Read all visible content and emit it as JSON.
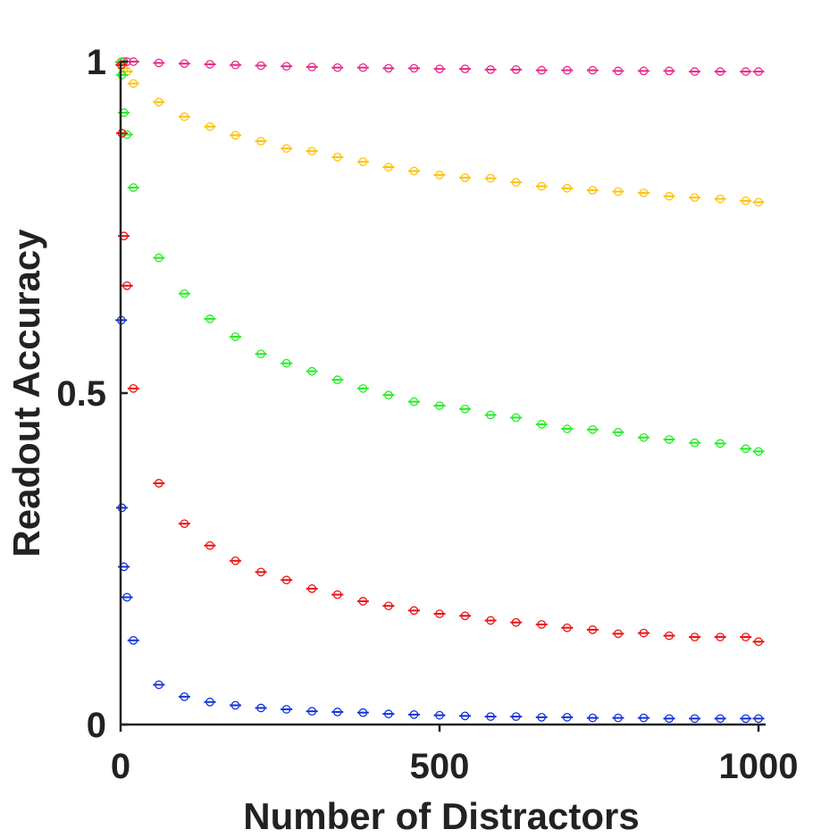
{
  "chart_data": {
    "type": "scatter",
    "title": "",
    "xlabel": "Number of Distractors",
    "ylabel": "Readout Accuracy",
    "xlim": [
      0,
      1000
    ],
    "ylim": [
      0,
      1
    ],
    "xticks": [
      0,
      500,
      1000
    ],
    "xtick_labels": [
      "0",
      "500",
      "1000"
    ],
    "yticks": [
      0,
      0.5,
      1
    ],
    "ytick_labels": [
      "0",
      "0.5",
      "1"
    ],
    "grid": false,
    "legend": "none",
    "x": [
      1,
      2,
      5,
      10,
      20,
      60,
      100,
      140,
      180,
      220,
      260,
      300,
      340,
      380,
      420,
      460,
      500,
      540,
      580,
      620,
      660,
      700,
      740,
      780,
      820,
      860,
      900,
      940,
      980,
      1000
    ],
    "series": [
      {
        "color": "#e7298a",
        "values": [
          1.0,
          1.0,
          1.0,
          1.0,
          1.0,
          0.998,
          0.997,
          0.996,
          0.995,
          0.994,
          0.993,
          0.992,
          0.991,
          0.991,
          0.99,
          0.99,
          0.989,
          0.989,
          0.988,
          0.988,
          0.987,
          0.987,
          0.987,
          0.986,
          0.986,
          0.986,
          0.985,
          0.985,
          0.985,
          0.985
        ]
      },
      {
        "color": "#ffc107",
        "values": [
          1.0,
          0.999,
          0.99,
          0.985,
          0.967,
          0.939,
          0.917,
          0.902,
          0.889,
          0.88,
          0.869,
          0.865,
          0.856,
          0.849,
          0.841,
          0.835,
          0.829,
          0.825,
          0.824,
          0.818,
          0.812,
          0.809,
          0.806,
          0.804,
          0.802,
          0.797,
          0.795,
          0.793,
          0.79,
          0.788
        ]
      },
      {
        "color": "#22ee22",
        "values": [
          0.999,
          0.98,
          0.923,
          0.89,
          0.81,
          0.704,
          0.65,
          0.612,
          0.585,
          0.559,
          0.545,
          0.533,
          0.52,
          0.507,
          0.497,
          0.487,
          0.481,
          0.476,
          0.467,
          0.463,
          0.453,
          0.446,
          0.445,
          0.441,
          0.433,
          0.43,
          0.425,
          0.424,
          0.416,
          0.412
        ]
      },
      {
        "color": "#ee1111",
        "values": [
          0.995,
          0.892,
          0.737,
          0.662,
          0.507,
          0.364,
          0.303,
          0.27,
          0.247,
          0.23,
          0.218,
          0.205,
          0.196,
          0.186,
          0.179,
          0.172,
          0.167,
          0.164,
          0.157,
          0.154,
          0.151,
          0.146,
          0.143,
          0.137,
          0.138,
          0.134,
          0.132,
          0.132,
          0.132,
          0.125
        ]
      },
      {
        "color": "#1133dd",
        "values": [
          0.61,
          0.327,
          0.238,
          0.192,
          0.127,
          0.06,
          0.042,
          0.034,
          0.029,
          0.025,
          0.023,
          0.02,
          0.019,
          0.018,
          0.016,
          0.015,
          0.014,
          0.013,
          0.012,
          0.012,
          0.011,
          0.011,
          0.01,
          0.01,
          0.01,
          0.009,
          0.009,
          0.009,
          0.009,
          0.009
        ]
      }
    ]
  }
}
